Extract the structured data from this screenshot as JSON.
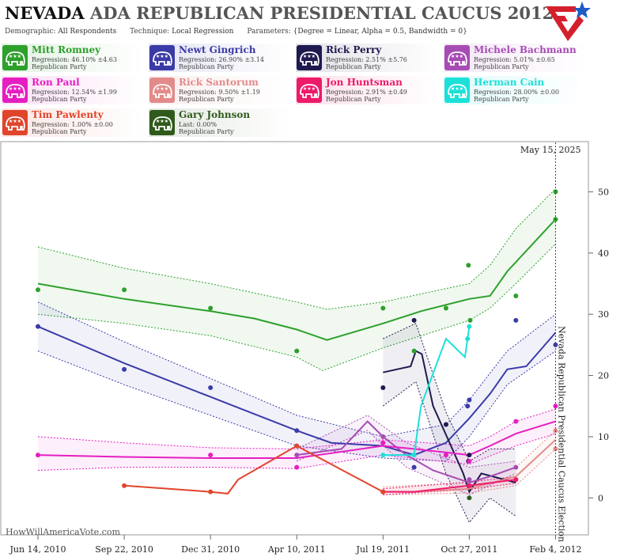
{
  "header": {
    "title_bold": "NEVADA",
    "title_rest": "ADA REPUBLICAN PRESIDENTIAL CAUCUS 2012",
    "demographic_label": "Demographic:",
    "demographic_value": "All Respondents",
    "technique_label": "Technique:",
    "technique_value": "Local Regression",
    "parameters_label": "Parameters:",
    "parameters_value": "{Degree = Linear, Alpha = 0.5, Bandwidth = 0}"
  },
  "candidates": [
    {
      "name": "Mitt Romney",
      "stat": "Regression: 46.10% ±4.63",
      "party": "Republican Party",
      "color": "#2ea02c"
    },
    {
      "name": "Newt Gingrich",
      "stat": "Regression: 26.90% ±3.14",
      "party": "Republican Party",
      "color": "#3b3ba8"
    },
    {
      "name": "Rick Perry",
      "stat": "Regression: 2.51% ±5.76",
      "party": "Republican Party",
      "color": "#1f1a4f"
    },
    {
      "name": "Michele Bachmann",
      "stat": "Regression: 5.01% ±0.65",
      "party": "Republican Party",
      "color": "#a64cb4"
    },
    {
      "name": "Ron Paul",
      "stat": "Regression: 12.54% ±1.99",
      "party": "Republican Party",
      "color": "#e61ec2"
    },
    {
      "name": "Rick Santorum",
      "stat": "Regression: 9.50% ±1.19",
      "party": "Republican Party",
      "color": "#e38a8a"
    },
    {
      "name": "Jon Huntsman",
      "stat": "Regression: 2.91% ±0.49",
      "party": "Republican Party",
      "color": "#ee1a6a"
    },
    {
      "name": "Herman Cain",
      "stat": "Regression: 28.00% ±0.00",
      "party": "Republican Party",
      "color": "#1de0d8"
    },
    {
      "name": "Tim Pawlenty",
      "stat": "Regression: 1.00% ±0.00",
      "party": "Republican Party",
      "color": "#e0452b"
    },
    {
      "name": "Gary Johnson",
      "stat": "Last: 0.00%",
      "party": "Republican Party",
      "color": "#2f5a1c"
    }
  ],
  "chart_data": {
    "type": "line",
    "x_type": "date",
    "xlim": [
      "2010-05-01",
      "2012-02-10"
    ],
    "ylim": [
      -5,
      56
    ],
    "x_ticks": [
      {
        "date": "2010-06-14",
        "label": "Jun 14, 2010"
      },
      {
        "date": "2010-09-22",
        "label": "Sep 22, 2010"
      },
      {
        "date": "2010-12-31",
        "label": "Dec 31, 2010"
      },
      {
        "date": "2011-04-10",
        "label": "Apr 10, 2011"
      },
      {
        "date": "2011-07-19",
        "label": "Jul 19, 2011"
      },
      {
        "date": "2011-10-27",
        "label": "Oct 27, 2011"
      },
      {
        "date": "2012-02-04",
        "label": "Feb 4, 2012"
      }
    ],
    "y_ticks": [
      0,
      10,
      20,
      30,
      40,
      50
    ],
    "date_label": "May 15, 2025",
    "event_label": "Nevada Republican Presidential Caucus Election",
    "event_date": "2012-02-04",
    "watermark": "HowWillAmericaVote.com",
    "series": [
      {
        "name": "Mitt Romney",
        "color": "#2ea02c",
        "line": [
          [
            "2010-06-14",
            35
          ],
          [
            "2010-09-22",
            32.5
          ],
          [
            "2010-12-31",
            30.5
          ],
          [
            "2011-02-20",
            29.3
          ],
          [
            "2011-04-10",
            27.5
          ],
          [
            "2011-05-15",
            25.8
          ],
          [
            "2011-07-19",
            28.5
          ],
          [
            "2011-09-01",
            30.5
          ],
          [
            "2011-10-27",
            32.5
          ],
          [
            "2011-11-20",
            33
          ],
          [
            "2011-12-10",
            37
          ],
          [
            "2012-02-04",
            45.5
          ]
        ],
        "upper": [
          [
            "2010-06-14",
            41
          ],
          [
            "2010-09-22",
            37.5
          ],
          [
            "2010-12-31",
            35
          ],
          [
            "2011-04-10",
            32
          ],
          [
            "2011-05-15",
            30.8
          ],
          [
            "2011-07-19",
            32
          ],
          [
            "2011-10-27",
            35
          ],
          [
            "2011-11-20",
            38
          ],
          [
            "2011-12-20",
            44
          ],
          [
            "2012-02-04",
            50.5
          ]
        ],
        "lower": [
          [
            "2010-06-14",
            30
          ],
          [
            "2010-09-22",
            28.5
          ],
          [
            "2010-12-31",
            26.5
          ],
          [
            "2011-04-10",
            23
          ],
          [
            "2011-05-10",
            20.8
          ],
          [
            "2011-07-19",
            24.5
          ],
          [
            "2011-10-27",
            29
          ],
          [
            "2011-11-20",
            31
          ],
          [
            "2011-12-20",
            35
          ],
          [
            "2012-02-04",
            41.5
          ]
        ],
        "points": [
          [
            "2010-06-14",
            34
          ],
          [
            "2010-09-22",
            34
          ],
          [
            "2010-12-31",
            31
          ],
          [
            "2011-04-10",
            24
          ],
          [
            "2011-07-19",
            31
          ],
          [
            "2011-08-24",
            24
          ],
          [
            "2011-09-30",
            31
          ],
          [
            "2011-10-26",
            38
          ],
          [
            "2011-10-28",
            29
          ],
          [
            "2011-12-20",
            33
          ],
          [
            "2012-02-04",
            50
          ],
          [
            "2012-02-04",
            45.5
          ]
        ]
      },
      {
        "name": "Newt Gingrich",
        "color": "#3b3ba8",
        "line": [
          [
            "2010-06-14",
            28
          ],
          [
            "2010-09-22",
            22
          ],
          [
            "2010-12-31",
            16.5
          ],
          [
            "2011-04-10",
            11
          ],
          [
            "2011-05-20",
            9
          ],
          [
            "2011-07-19",
            8.5
          ],
          [
            "2011-08-24",
            7
          ],
          [
            "2011-09-30",
            9
          ],
          [
            "2011-10-27",
            13
          ],
          [
            "2011-11-20",
            17
          ],
          [
            "2011-12-10",
            21
          ],
          [
            "2012-01-01",
            21.5
          ],
          [
            "2012-02-04",
            27
          ]
        ],
        "upper": [
          [
            "2010-06-14",
            32
          ],
          [
            "2010-09-22",
            25.5
          ],
          [
            "2010-12-31",
            19.5
          ],
          [
            "2011-04-10",
            13.5
          ],
          [
            "2011-07-19",
            10
          ],
          [
            "2011-09-30",
            12
          ],
          [
            "2011-10-27",
            16
          ],
          [
            "2011-12-10",
            24
          ],
          [
            "2012-02-04",
            30
          ]
        ],
        "lower": [
          [
            "2010-06-14",
            24
          ],
          [
            "2010-09-22",
            18.5
          ],
          [
            "2010-12-31",
            13.5
          ],
          [
            "2011-04-10",
            8.5
          ],
          [
            "2011-07-19",
            6.5
          ],
          [
            "2011-09-30",
            6
          ],
          [
            "2011-10-27",
            10
          ],
          [
            "2011-12-10",
            18.5
          ],
          [
            "2012-02-04",
            24
          ]
        ],
        "points": [
          [
            "2010-06-14",
            28
          ],
          [
            "2010-09-22",
            21
          ],
          [
            "2010-12-31",
            18
          ],
          [
            "2011-04-10",
            11
          ],
          [
            "2011-08-24",
            5
          ],
          [
            "2011-10-25",
            15
          ],
          [
            "2011-10-27",
            16
          ],
          [
            "2011-12-20",
            29
          ],
          [
            "2012-02-04",
            25
          ]
        ]
      },
      {
        "name": "Rick Perry",
        "color": "#1f1a4f",
        "line": [
          [
            "2011-07-19",
            20.5
          ],
          [
            "2011-08-20",
            21.5
          ],
          [
            "2011-08-26",
            24
          ],
          [
            "2011-09-02",
            23.5
          ],
          [
            "2011-09-15",
            15
          ],
          [
            "2011-10-01",
            10
          ],
          [
            "2011-10-20",
            4
          ],
          [
            "2011-10-27",
            1
          ],
          [
            "2011-11-10",
            4
          ],
          [
            "2011-12-20",
            2.5
          ]
        ],
        "upper": [
          [
            "2011-07-19",
            26
          ],
          [
            "2011-08-26",
            28.5
          ],
          [
            "2011-09-30",
            14
          ],
          [
            "2011-10-27",
            6
          ],
          [
            "2011-11-20",
            8
          ],
          [
            "2011-12-20",
            8
          ]
        ],
        "lower": [
          [
            "2011-07-19",
            15
          ],
          [
            "2011-08-26",
            19
          ],
          [
            "2011-09-30",
            4
          ],
          [
            "2011-10-27",
            -4
          ],
          [
            "2011-11-20",
            0
          ],
          [
            "2011-12-20",
            -3
          ]
        ],
        "points": [
          [
            "2011-07-19",
            18
          ],
          [
            "2011-08-24",
            29
          ],
          [
            "2011-09-30",
            12
          ],
          [
            "2011-10-27",
            7
          ],
          [
            "2011-10-26",
            6
          ]
        ]
      },
      {
        "name": "Michele Bachmann",
        "color": "#a64cb4",
        "line": [
          [
            "2011-04-10",
            7
          ],
          [
            "2011-06-01",
            8
          ],
          [
            "2011-07-01",
            12.5
          ],
          [
            "2011-07-19",
            10
          ],
          [
            "2011-08-15",
            7
          ],
          [
            "2011-09-15",
            4.5
          ],
          [
            "2011-10-27",
            2.5
          ],
          [
            "2011-11-20",
            3.5
          ],
          [
            "2011-12-20",
            5
          ]
        ],
        "upper": [
          [
            "2011-04-10",
            8
          ],
          [
            "2011-07-01",
            13.5
          ],
          [
            "2011-08-15",
            9
          ],
          [
            "2011-10-27",
            5
          ],
          [
            "2011-12-20",
            6
          ]
        ],
        "lower": [
          [
            "2011-04-10",
            6
          ],
          [
            "2011-07-01",
            11
          ],
          [
            "2011-08-15",
            5
          ],
          [
            "2011-10-27",
            0.5
          ],
          [
            "2011-12-20",
            4
          ]
        ],
        "points": [
          [
            "2011-04-10",
            7
          ],
          [
            "2011-07-19",
            10
          ],
          [
            "2011-10-27",
            3
          ],
          [
            "2011-12-20",
            5
          ]
        ]
      },
      {
        "name": "Ron Paul",
        "color": "#e61ec2",
        "line": [
          [
            "2010-06-14",
            7
          ],
          [
            "2010-09-22",
            6.7
          ],
          [
            "2010-12-31",
            6.5
          ],
          [
            "2011-04-10",
            6.5
          ],
          [
            "2011-07-19",
            8.5
          ],
          [
            "2011-08-24",
            8
          ],
          [
            "2011-10-27",
            7
          ],
          [
            "2011-11-20",
            8.5
          ],
          [
            "2011-12-20",
            10.5
          ],
          [
            "2012-02-04",
            12.5
          ]
        ],
        "upper": [
          [
            "2010-06-14",
            10
          ],
          [
            "2010-09-22",
            9
          ],
          [
            "2010-12-31",
            8.2
          ],
          [
            "2011-04-10",
            8
          ],
          [
            "2011-07-19",
            9.5
          ],
          [
            "2011-10-27",
            8.5
          ],
          [
            "2011-11-20",
            10
          ],
          [
            "2011-12-20",
            12.5
          ],
          [
            "2012-02-04",
            14.5
          ]
        ],
        "lower": [
          [
            "2010-06-14",
            4.5
          ],
          [
            "2010-09-22",
            5
          ],
          [
            "2010-12-31",
            5
          ],
          [
            "2011-04-10",
            4.8
          ],
          [
            "2011-07-19",
            7
          ],
          [
            "2011-10-27",
            5.5
          ],
          [
            "2011-12-20",
            8.5
          ],
          [
            "2012-02-04",
            10.5
          ]
        ],
        "points": [
          [
            "2010-06-14",
            7
          ],
          [
            "2010-12-31",
            7
          ],
          [
            "2011-04-10",
            5
          ],
          [
            "2011-07-19",
            9
          ],
          [
            "2011-09-30",
            7
          ],
          [
            "2011-10-27",
            6
          ],
          [
            "2011-12-20",
            12.5
          ],
          [
            "2012-02-04",
            15
          ]
        ]
      },
      {
        "name": "Rick Santorum",
        "color": "#e38a8a",
        "line": [
          [
            "2011-07-19",
            1
          ],
          [
            "2011-08-24",
            1
          ],
          [
            "2011-10-27",
            1.5
          ],
          [
            "2011-12-20",
            3.5
          ],
          [
            "2012-02-04",
            9.5
          ]
        ],
        "upper": [
          [
            "2011-07-19",
            1.8
          ],
          [
            "2011-10-27",
            2.5
          ],
          [
            "2011-12-20",
            5
          ],
          [
            "2012-02-04",
            11
          ]
        ],
        "lower": [
          [
            "2011-07-19",
            0.5
          ],
          [
            "2011-10-27",
            0.8
          ],
          [
            "2011-12-20",
            2
          ],
          [
            "2012-02-04",
            8
          ]
        ],
        "points": [
          [
            "2011-07-19",
            1
          ],
          [
            "2011-10-27",
            2
          ],
          [
            "2011-12-20",
            3
          ],
          [
            "2012-02-04",
            11
          ],
          [
            "2012-02-04",
            8
          ]
        ]
      },
      {
        "name": "Jon Huntsman",
        "color": "#ee1a6a",
        "line": [
          [
            "2011-07-19",
            1
          ],
          [
            "2011-08-24",
            1
          ],
          [
            "2011-10-27",
            2
          ],
          [
            "2011-12-20",
            3
          ]
        ],
        "upper": [
          [
            "2011-07-19",
            1.5
          ],
          [
            "2011-10-27",
            2.6
          ],
          [
            "2011-12-20",
            3.5
          ]
        ],
        "lower": [
          [
            "2011-07-19",
            0.5
          ],
          [
            "2011-10-27",
            1.4
          ],
          [
            "2011-12-20",
            2.4
          ]
        ],
        "points": [
          [
            "2011-07-19",
            1
          ],
          [
            "2011-10-27",
            2
          ],
          [
            "2011-12-20",
            3
          ]
        ]
      },
      {
        "name": "Herman Cain",
        "color": "#1de0d8",
        "line": [
          [
            "2011-07-19",
            7
          ],
          [
            "2011-08-24",
            7
          ],
          [
            "2011-09-01",
            15
          ],
          [
            "2011-09-30",
            26
          ],
          [
            "2011-10-22",
            23
          ],
          [
            "2011-10-27",
            28
          ]
        ],
        "upper": [],
        "lower": [],
        "points": [
          [
            "2011-07-19",
            7
          ],
          [
            "2011-08-24",
            7
          ],
          [
            "2011-10-25",
            26
          ],
          [
            "2011-10-27",
            28
          ]
        ]
      },
      {
        "name": "Tim Pawlenty",
        "color": "#e0452b",
        "line": [
          [
            "2010-09-22",
            2
          ],
          [
            "2010-12-31",
            1
          ],
          [
            "2011-01-20",
            0.7
          ],
          [
            "2011-02-01",
            3
          ],
          [
            "2011-04-10",
            8.5
          ],
          [
            "2011-07-19",
            1
          ]
        ],
        "upper": [],
        "lower": [],
        "points": [
          [
            "2010-09-22",
            2
          ],
          [
            "2010-12-31",
            1
          ],
          [
            "2011-04-10",
            8.5
          ],
          [
            "2011-07-19",
            1
          ]
        ]
      },
      {
        "name": "Gary Johnson",
        "color": "#2f5a1c",
        "line": [],
        "upper": [],
        "lower": [],
        "points": [
          [
            "2011-10-27",
            0
          ]
        ]
      }
    ]
  }
}
